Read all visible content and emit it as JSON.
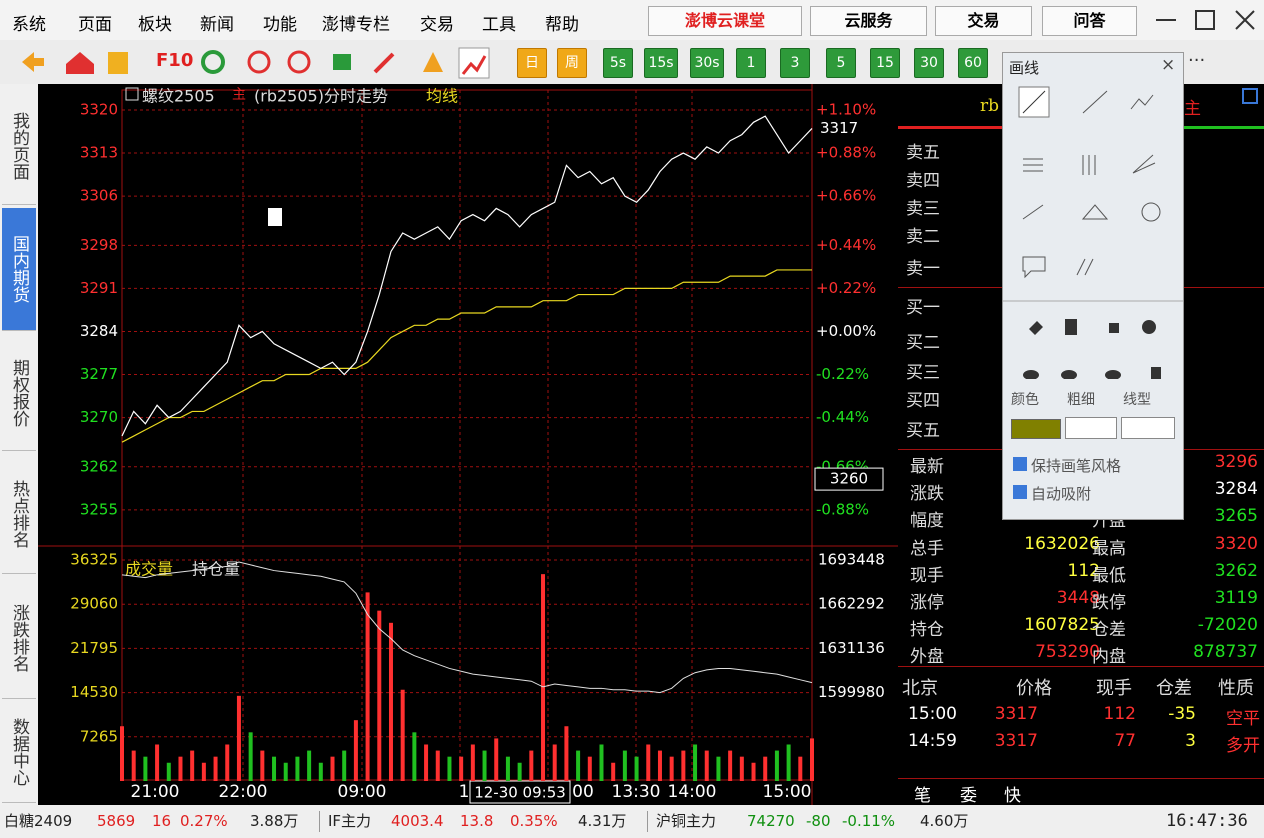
{
  "menu": {
    "items": [
      "系统",
      "页面",
      "板块",
      "新闻",
      "功能",
      "澎博专栏",
      "交易",
      "工具",
      "帮助"
    ],
    "buttons": [
      "澎博云课堂",
      "云服务",
      "交易",
      "问答"
    ]
  },
  "toolbar": {
    "f10": "F10",
    "periods": [
      "日",
      "周"
    ],
    "intervals": [
      "5s",
      "15s",
      "30s",
      "1",
      "3",
      "5",
      "15",
      "30",
      "60"
    ],
    "more": "···"
  },
  "sidebar": {
    "tabs": [
      "我的页面",
      "国内期货",
      "期权报价",
      "热点排名",
      "涨跌排名",
      "数据中心"
    ]
  },
  "chart_data": {
    "type": "line",
    "title": "螺纹2505",
    "title_badge": "主",
    "subtitle": "(rb2505)分时走势",
    "ylim": [
      3250.1,
      3323.25
    ],
    "yticks": [
      3320,
      3313,
      3306,
      3298,
      3291,
      3284,
      3277,
      3270,
      3262,
      3255
    ],
    "pct_ticks": [
      "+1.10%",
      "+0.88%",
      "+0.66%",
      "+0.44%",
      "+0.22%",
      "+0.00%",
      "-0.22%",
      "-0.44%",
      "-0.66%",
      "-0.88%"
    ],
    "last_price": 3317,
    "cursor_price": 3260,
    "cursor_time": "12-30 09:53",
    "time_labels": [
      "21:00",
      "22:00",
      "09:00",
      "1",
      "00",
      "13:30",
      "14:00",
      "15:00"
    ],
    "grid": true,
    "series": [
      {
        "color": "#ffffff",
        "values": [
          3267,
          3271,
          3269,
          3272,
          3270,
          3271,
          3273,
          3275,
          3277,
          3279,
          3285,
          3283,
          3284,
          3282,
          3281,
          3280,
          3279,
          3278,
          3279,
          3277,
          3279,
          3284,
          3290,
          3297,
          3300,
          3299,
          3300,
          3301,
          3299,
          3302,
          3303,
          3302,
          3304,
          3303,
          3301,
          3303,
          3304,
          3305,
          3311,
          3309,
          3310,
          3308,
          3309,
          3306,
          3305,
          3307,
          3310,
          3312,
          3313,
          3312,
          3314,
          3313,
          3315,
          3316,
          3318,
          3319,
          3316,
          3313,
          3315,
          3317
        ]
      },
      {
        "name": "均线",
        "color": "#e8d820",
        "values": [
          3266,
          3267,
          3268,
          3269,
          3270,
          3270,
          3271,
          3271,
          3272,
          3273,
          3274,
          3275,
          3276,
          3276,
          3277,
          3277,
          3277,
          3278,
          3278,
          3278,
          3278,
          3279,
          3281,
          3283,
          3284,
          3285,
          3285,
          3286,
          3286,
          3287,
          3287,
          3287,
          3288,
          3288,
          3288,
          3288,
          3289,
          3289,
          3289,
          3290,
          3290,
          3290,
          3290,
          3291,
          3291,
          3291,
          3291,
          3291,
          3292,
          3292,
          3292,
          3292,
          3293,
          3293,
          3293,
          3293,
          3294,
          3294,
          3294,
          3294
        ]
      }
    ],
    "volume": {
      "name": "成交量",
      "up_color": "#ff3030",
      "down_color": "#20c020",
      "ylim": [
        0,
        36325
      ],
      "yticks": [
        36325,
        29060,
        21795,
        14530,
        7265
      ],
      "values": [
        9000,
        5000,
        4000,
        6000,
        3000,
        4000,
        5000,
        3000,
        4000,
        6000,
        14000,
        8000,
        5000,
        4000,
        3000,
        4000,
        5000,
        3000,
        4000,
        5000,
        10000,
        31000,
        28000,
        26000,
        15000,
        8000,
        6000,
        5000,
        4000,
        4000,
        6000,
        5000,
        7000,
        4000,
        3000,
        5000,
        34000,
        6000,
        9000,
        5000,
        4000,
        6000,
        3000,
        5000,
        4000,
        6000,
        5000,
        4000,
        5000,
        6000,
        5000,
        4000,
        5000,
        4000,
        3000,
        4000,
        5000,
        6000,
        4000,
        7000
      ]
    },
    "open_interest": {
      "name": "持仓量",
      "color": "#e0e0e0",
      "ylim": [
        1537668,
        1693448
      ],
      "yticks": [
        1693448,
        1662292,
        1631136,
        1599980
      ],
      "values": [
        1683000,
        1682000,
        1681000,
        1683000,
        1684000,
        1685000,
        1686000,
        1687000,
        1688000,
        1689000,
        1692000,
        1690000,
        1688000,
        1686000,
        1685000,
        1684000,
        1683000,
        1682000,
        1680000,
        1678000,
        1670000,
        1655000,
        1645000,
        1638000,
        1630000,
        1626000,
        1623000,
        1620000,
        1617000,
        1615000,
        1613000,
        1612000,
        1611000,
        1610000,
        1609000,
        1608000,
        1604000,
        1606000,
        1605000,
        1604000,
        1603000,
        1603000,
        1602000,
        1602000,
        1601000,
        1601000,
        1600000,
        1603000,
        1610000,
        1614000,
        1616000,
        1617000,
        1617000,
        1616000,
        1615000,
        1614000,
        1613000,
        1611000,
        1609000,
        1607000
      ]
    }
  },
  "panel": {
    "header": "rb",
    "badge": "主",
    "asks": [
      "卖五",
      "卖四",
      "卖三",
      "卖二",
      "卖一"
    ],
    "bids": [
      "买一",
      "买二",
      "买三",
      "买四",
      "买五"
    ],
    "stats": [
      {
        "label": "最新",
        "value2": 3296,
        "color2": "#ff3030"
      },
      {
        "label": "涨跌",
        "value2": 3284,
        "color2": "#ffffff"
      },
      {
        "label": "幅度",
        "label2": "开盘",
        "value2": 3265,
        "color2": "#20e020"
      },
      {
        "label": "总手",
        "value": 1632026,
        "color": "#ffff40",
        "label2": "最高",
        "value2": 3320,
        "color2": "#ff3030"
      },
      {
        "label": "现手",
        "value": 112,
        "color": "#ffff40",
        "label2": "最低",
        "value2": 3262,
        "color2": "#20e020"
      },
      {
        "label": "涨停",
        "value": 3448,
        "color": "#ff3030",
        "label2": "跌停",
        "value2": 3119,
        "color2": "#20e020"
      },
      {
        "label": "持仓",
        "value": 1607825,
        "color": "#ffff40",
        "label2": "仓差",
        "value2": -72020,
        "color2": "#20e020"
      },
      {
        "label": "外盘",
        "value": 753290,
        "color": "#ff3030",
        "label2": "内盘",
        "value2": 878737,
        "color2": "#20e020"
      }
    ],
    "trades_header": [
      "北京",
      "价格",
      "现手",
      "仓差",
      "性质"
    ],
    "trades": [
      [
        "15:00",
        3317,
        112,
        -35,
        "空平"
      ],
      [
        "14:59",
        3317,
        77,
        3,
        "多开"
      ]
    ],
    "tabs": [
      "笔",
      "委",
      "快"
    ]
  },
  "popup": {
    "title": "画线",
    "close": "×",
    "labels": [
      "颜色",
      "粗细",
      "线型"
    ],
    "options": [
      "保持画笔风格",
      "自动吸附"
    ]
  },
  "status": {
    "quotes": [
      {
        "name": "白糖2409",
        "price": 5869,
        "change": 16,
        "pct": "0.27%",
        "volume": "3.88万",
        "color": "#e02020"
      },
      {
        "name": "IF主力",
        "price": 4003.4,
        "change": 13.8,
        "pct": "0.35%",
        "volume": "4.31万",
        "color": "#e02020"
      },
      {
        "name": "沪铜主力",
        "price": 74270,
        "change": -80,
        "pct": "-0.11%",
        "volume": "4.60万",
        "color": "#109010"
      }
    ],
    "time": "16:47:36"
  }
}
